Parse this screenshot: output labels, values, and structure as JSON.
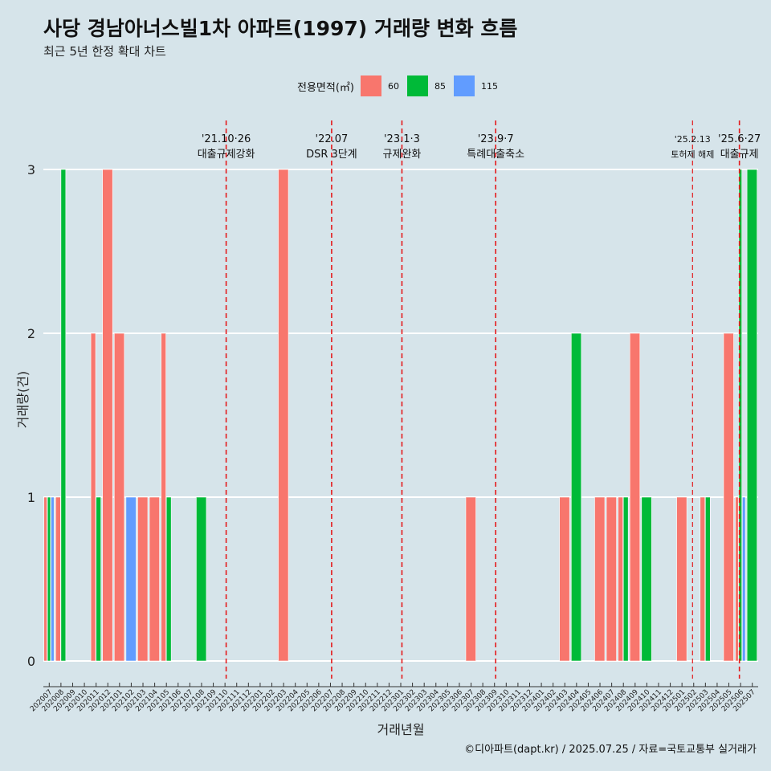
{
  "title": "사당 경남아너스빌1차 아파트(1997) 거래량 변화 흐름",
  "subtitle": "최근 5년 한정 확대 차트",
  "caption": "©디아파트(dapt.kr) / 2025.07.25 / 자료=국토교통부 실거래가",
  "chart_data": {
    "type": "bar",
    "xlabel": "거래년월",
    "ylabel": "거래량(건)",
    "ylim": [
      0,
      3
    ],
    "yticks": [
      0,
      1,
      2,
      3
    ],
    "legend": {
      "title": "전용면적(㎡)",
      "position": "top",
      "items": [
        {
          "name": "60",
          "color": "#f8766d"
        },
        {
          "name": "85",
          "color": "#00ba38"
        },
        {
          "name": "115",
          "color": "#619cff"
        }
      ]
    },
    "categories": [
      "202007",
      "202008",
      "202009",
      "202010",
      "202011",
      "202012",
      "202101",
      "202102",
      "202103",
      "202104",
      "202105",
      "202106",
      "202107",
      "202108",
      "202109",
      "202110",
      "202111",
      "202112",
      "202201",
      "202202",
      "202203",
      "202204",
      "202205",
      "202206",
      "202207",
      "202208",
      "202209",
      "202210",
      "202211",
      "202212",
      "202301",
      "202302",
      "202303",
      "202304",
      "202305",
      "202306",
      "202307",
      "202308",
      "202309",
      "202310",
      "202311",
      "202312",
      "202401",
      "202402",
      "202403",
      "202404",
      "202405",
      "202406",
      "202407",
      "202408",
      "202409",
      "202410",
      "202411",
      "202412",
      "202501",
      "202502",
      "202503",
      "202504",
      "202505",
      "202506",
      "202507"
    ],
    "series": [
      {
        "name": "60",
        "color": "#f8766d",
        "values": [
          1,
          1,
          0,
          0,
          2,
          3,
          2,
          0,
          1,
          1,
          2,
          0,
          0,
          0,
          0,
          0,
          0,
          0,
          0,
          0,
          3,
          0,
          0,
          0,
          0,
          0,
          0,
          0,
          0,
          0,
          0,
          0,
          0,
          0,
          0,
          0,
          1,
          0,
          0,
          0,
          0,
          0,
          0,
          0,
          1,
          0,
          0,
          1,
          1,
          1,
          2,
          0,
          0,
          0,
          1,
          0,
          1,
          0,
          2,
          1,
          0
        ]
      },
      {
        "name": "85",
        "color": "#00ba38",
        "values": [
          1,
          3,
          0,
          0,
          1,
          0,
          0,
          0,
          0,
          0,
          1,
          0,
          0,
          1,
          0,
          0,
          0,
          0,
          0,
          0,
          0,
          0,
          0,
          0,
          0,
          0,
          0,
          0,
          0,
          0,
          0,
          0,
          0,
          0,
          0,
          0,
          0,
          0,
          0,
          0,
          0,
          0,
          0,
          0,
          0,
          2,
          0,
          0,
          0,
          1,
          0,
          1,
          0,
          0,
          0,
          0,
          1,
          0,
          0,
          3,
          3
        ]
      },
      {
        "name": "115",
        "color": "#619cff",
        "values": [
          1,
          0,
          0,
          0,
          0,
          0,
          0,
          1,
          0,
          0,
          0,
          0,
          0,
          0,
          0,
          0,
          0,
          0,
          0,
          0,
          0,
          0,
          0,
          0,
          0,
          0,
          0,
          0,
          0,
          0,
          0,
          0,
          0,
          0,
          0,
          0,
          0,
          0,
          0,
          0,
          0,
          0,
          0,
          0,
          0,
          0,
          0,
          0,
          0,
          0,
          0,
          0,
          0,
          0,
          0,
          0,
          0,
          0,
          0,
          1,
          0
        ]
      }
    ],
    "annotations": [
      {
        "x": 15.6,
        "date": "'21.10·26",
        "label": "대출규제강화",
        "small": false
      },
      {
        "x": 24.6,
        "date": "'22.07",
        "label": "DSR 3단계",
        "small": false
      },
      {
        "x": 30.6,
        "date": "'23.1·3",
        "label": "규제완화",
        "small": false
      },
      {
        "x": 38.6,
        "date": "'23.9·7",
        "label": "특례대출축소",
        "small": false
      },
      {
        "x": 55.4,
        "date": "'25.2.13",
        "label": "토허제 해제",
        "small": true
      },
      {
        "x": 59.4,
        "date": "'25.6·27",
        "label": "대출규제",
        "small": false
      }
    ]
  }
}
